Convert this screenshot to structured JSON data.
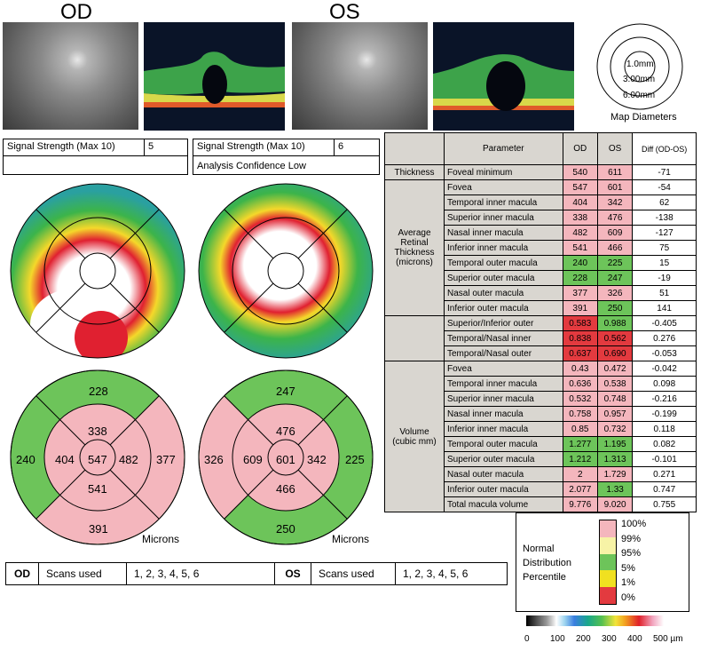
{
  "eyes": {
    "od": "OD",
    "os": "OS"
  },
  "map_diameters": {
    "rings": [
      "1.0mm",
      "3.00mm",
      "6.00mm"
    ],
    "caption": "Map Diameters"
  },
  "signal": {
    "od_label": "Signal Strength (Max 10)",
    "od_value": "5",
    "os_label": "Signal Strength (Max 10)",
    "os_value": "6",
    "os_note": "Analysis Confidence Low"
  },
  "table": {
    "headers": [
      "Parameter",
      "OD",
      "OS",
      "Diff (OD-OS)"
    ],
    "groups": {
      "thickness": "Thickness",
      "avg": "Average Retinal Thickness (microns)",
      "volume": "Volume (cubic mm)"
    },
    "rows": [
      {
        "param": "Foveal minimum",
        "od": "540",
        "os": "611",
        "diff": "-71",
        "odc": "pink",
        "osc": "pink"
      },
      {
        "param": "Fovea",
        "od": "547",
        "os": "601",
        "diff": "-54",
        "odc": "pink",
        "osc": "pink"
      },
      {
        "param": "Temporal inner macula",
        "od": "404",
        "os": "342",
        "diff": "62",
        "odc": "pink",
        "osc": "pink"
      },
      {
        "param": "Superior inner macula",
        "od": "338",
        "os": "476",
        "diff": "-138",
        "odc": "pink",
        "osc": "pink"
      },
      {
        "param": "Nasal inner macula",
        "od": "482",
        "os": "609",
        "diff": "-127",
        "odc": "pink",
        "osc": "pink"
      },
      {
        "param": "Inferior inner macula",
        "od": "541",
        "os": "466",
        "diff": "75",
        "odc": "pink",
        "osc": "pink"
      },
      {
        "param": "Temporal outer macula",
        "od": "240",
        "os": "225",
        "diff": "15",
        "odc": "green",
        "osc": "green"
      },
      {
        "param": "Superior outer macula",
        "od": "228",
        "os": "247",
        "diff": "-19",
        "odc": "green",
        "osc": "green"
      },
      {
        "param": "Nasal outer macula",
        "od": "377",
        "os": "326",
        "diff": "51",
        "odc": "pink",
        "osc": "pink"
      },
      {
        "param": "Inferior outer macula",
        "od": "391",
        "os": "250",
        "diff": "141",
        "odc": "pink",
        "osc": "green"
      },
      {
        "param": "Superior/Inferior outer",
        "od": "0.583",
        "os": "0.988",
        "diff": "-0.405",
        "odc": "red",
        "osc": "green"
      },
      {
        "param": "Temporal/Nasal inner",
        "od": "0.838",
        "os": "0.562",
        "diff": "0.276",
        "odc": "red",
        "osc": "red"
      },
      {
        "param": "Temporal/Nasal outer",
        "od": "0.637",
        "os": "0.690",
        "diff": "-0.053",
        "odc": "red",
        "osc": "red"
      },
      {
        "param": "Fovea",
        "od": "0.43",
        "os": "0.472",
        "diff": "-0.042",
        "odc": "pink",
        "osc": "pink"
      },
      {
        "param": "Temporal inner macula",
        "od": "0.636",
        "os": "0.538",
        "diff": "0.098",
        "odc": "pink",
        "osc": "pink"
      },
      {
        "param": "Superior inner macula",
        "od": "0.532",
        "os": "0.748",
        "diff": "-0.216",
        "odc": "pink",
        "osc": "pink"
      },
      {
        "param": "Nasal inner macula",
        "od": "0.758",
        "os": "0.957",
        "diff": "-0.199",
        "odc": "pink",
        "osc": "pink"
      },
      {
        "param": "Inferior inner macula",
        "od": "0.85",
        "os": "0.732",
        "diff": "0.118",
        "odc": "pink",
        "osc": "pink"
      },
      {
        "param": "Temporal outer macula",
        "od": "1.277",
        "os": "1.195",
        "diff": "0.082",
        "odc": "green",
        "osc": "green"
      },
      {
        "param": "Superior outer macula",
        "od": "1.212",
        "os": "1.313",
        "diff": "-0.101",
        "odc": "green",
        "osc": "green"
      },
      {
        "param": "Nasal outer macula",
        "od": "2",
        "os": "1.729",
        "diff": "0.271",
        "odc": "pink",
        "osc": "pink"
      },
      {
        "param": "Inferior outer macula",
        "od": "2.077",
        "os": "1.33",
        "diff": "0.747",
        "odc": "pink",
        "osc": "green"
      },
      {
        "param": "Total macula volume",
        "od": "9.776",
        "os": "9.020",
        "diff": "0.755",
        "odc": "pink",
        "osc": "pink"
      }
    ]
  },
  "od_etdrs": {
    "center": "547",
    "inner_top": "338",
    "inner_left": "404",
    "inner_right": "482",
    "inner_bottom": "541",
    "outer_top": "228",
    "outer_left": "240",
    "outer_right": "377",
    "outer_bottom": "391"
  },
  "os_etdrs": {
    "center": "601",
    "inner_top": "476",
    "inner_left": "609",
    "inner_right": "342",
    "inner_bottom": "466",
    "outer_top": "247",
    "outer_left": "326",
    "outer_right": "225",
    "outer_bottom": "250"
  },
  "microns_label": "Microns",
  "scans": {
    "od": "OD",
    "os": "OS",
    "label": "Scans used",
    "od_list": "1, 2, 3, 4, 5, 6",
    "os_list": "1, 2, 3, 4, 5, 6"
  },
  "legend": {
    "text": [
      "Normal",
      "Distribution",
      "Percentile"
    ],
    "percentiles": [
      "100%",
      "99%",
      "95%",
      "5%",
      "1%",
      "0%"
    ],
    "colors": [
      "#f4b6bd",
      "#f7f3a6",
      "#6dc45a",
      "#f0e020",
      "#e33a3f"
    ]
  },
  "colorbar": {
    "ticks": [
      "0",
      "100",
      "200",
      "300",
      "400",
      "500 µm"
    ]
  }
}
